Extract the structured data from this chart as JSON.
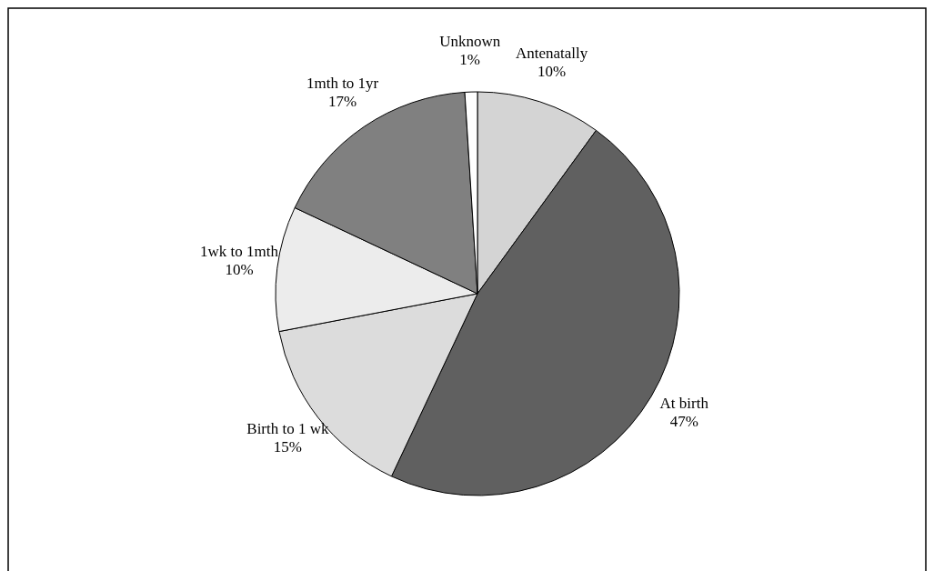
{
  "chart_data": {
    "type": "pie",
    "categories": [
      "Antenatally",
      "At birth",
      "Birth to 1 wk",
      "1wk to 1mth",
      "1mth to 1yr",
      "Unknown"
    ],
    "values": [
      10,
      47,
      15,
      10,
      17,
      1
    ],
    "value_labels": [
      "10%",
      "47%",
      "15%",
      "10%",
      "17%",
      "1%"
    ],
    "colors": [
      "#d4d4d4",
      "#606060",
      "#dcdcdc",
      "#ececec",
      "#808080",
      "#ffffff"
    ]
  }
}
